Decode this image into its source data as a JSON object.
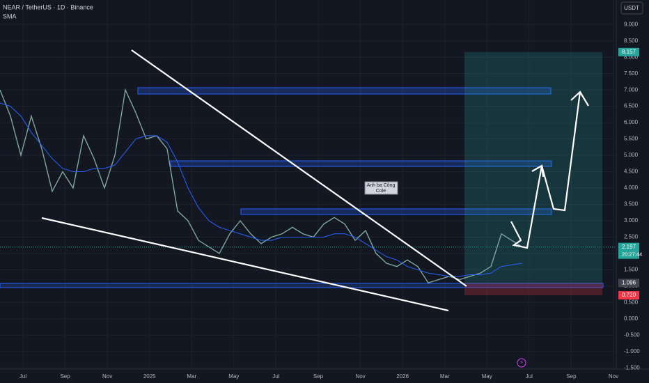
{
  "header": {
    "symbol": "NEAR / TetherUS · 1D · Binance",
    "indicator": "SMA",
    "currency": "USDT"
  },
  "annotation": "Anh ba Công\nCole",
  "price_labels": {
    "target": {
      "value": 8.157,
      "label": "8.157"
    },
    "last": {
      "value": 2.197,
      "label": "2.197"
    },
    "countdown": "20:27:44",
    "entry": {
      "value": 1.096,
      "label": "1.096"
    },
    "stop": {
      "value": 0.72,
      "label": "0.720"
    }
  },
  "chart_data": {
    "type": "line",
    "series": [
      {
        "name": "NEAR / TetherUS",
        "color": "#7fa89f",
        "values": [
          7.0,
          6.2,
          5.0,
          6.2,
          5.2,
          3.9,
          4.5,
          4.0,
          5.6,
          4.9,
          4.0,
          5.0,
          7.0,
          6.3,
          5.5,
          5.6,
          5.2,
          3.3,
          3.0,
          2.4,
          2.2,
          2.0,
          2.6,
          3.0,
          2.6,
          2.3,
          2.5,
          2.6,
          2.8,
          2.6,
          2.5,
          2.9,
          3.1,
          2.9,
          2.4,
          2.7,
          2.0,
          1.7,
          1.6,
          1.8,
          1.6,
          1.1,
          1.2,
          1.3,
          1.2,
          1.3,
          1.4,
          1.6,
          2.6,
          2.4,
          2.2
        ]
      },
      {
        "name": "SMA",
        "color": "#2962ff",
        "values": [
          6.6,
          6.5,
          6.2,
          5.7,
          5.3,
          4.9,
          4.6,
          4.5,
          4.5,
          4.6,
          4.6,
          4.7,
          5.1,
          5.5,
          5.6,
          5.6,
          5.4,
          4.8,
          4.0,
          3.4,
          3.0,
          2.8,
          2.7,
          2.6,
          2.5,
          2.4,
          2.4,
          2.5,
          2.5,
          2.5,
          2.5,
          2.5,
          2.6,
          2.6,
          2.5,
          2.3,
          2.1,
          1.9,
          1.8,
          1.6,
          1.5,
          1.4,
          1.35,
          1.3,
          1.3,
          1.35,
          1.35,
          1.4,
          1.6,
          1.65,
          1.7
        ]
      }
    ],
    "ylim": [
      -1.6,
      9.75
    ],
    "yticks": [
      {
        "value": 9,
        "label": "9.000"
      },
      {
        "value": 8.5,
        "label": "8.500"
      },
      {
        "value": 8,
        "label": "8.000"
      },
      {
        "value": 7.5,
        "label": "7.500"
      },
      {
        "value": 7,
        "label": "7.000"
      },
      {
        "value": 6.5,
        "label": "6.500"
      },
      {
        "value": 6,
        "label": "6.000"
      },
      {
        "value": 5.5,
        "label": "5.500"
      },
      {
        "value": 5,
        "label": "5.000"
      },
      {
        "value": 4.5,
        "label": "4.500"
      },
      {
        "value": 4,
        "label": "4.000"
      },
      {
        "value": 3.5,
        "label": "3.500"
      },
      {
        "value": 3,
        "label": "3.000"
      },
      {
        "value": 2.5,
        "label": "2.500"
      },
      {
        "value": 2,
        "label": "2.000"
      },
      {
        "value": 1.5,
        "label": "1.500"
      },
      {
        "value": 1,
        "label": "1.000"
      },
      {
        "value": 0.5,
        "label": "0.500"
      },
      {
        "value": 0,
        "label": "0.000"
      },
      {
        "value": -0.5,
        "label": "-0.500"
      },
      {
        "value": -1,
        "label": "-1.000"
      },
      {
        "value": -1.5,
        "label": "-1.500"
      }
    ],
    "xticks": [
      "Jul",
      "Sep",
      "Nov",
      "2025",
      "Mar",
      "May",
      "Jul",
      "Sep",
      "Nov",
      "2026",
      "Mar",
      "May",
      "Jul",
      "Sep",
      "Nov"
    ],
    "grid": true
  }
}
